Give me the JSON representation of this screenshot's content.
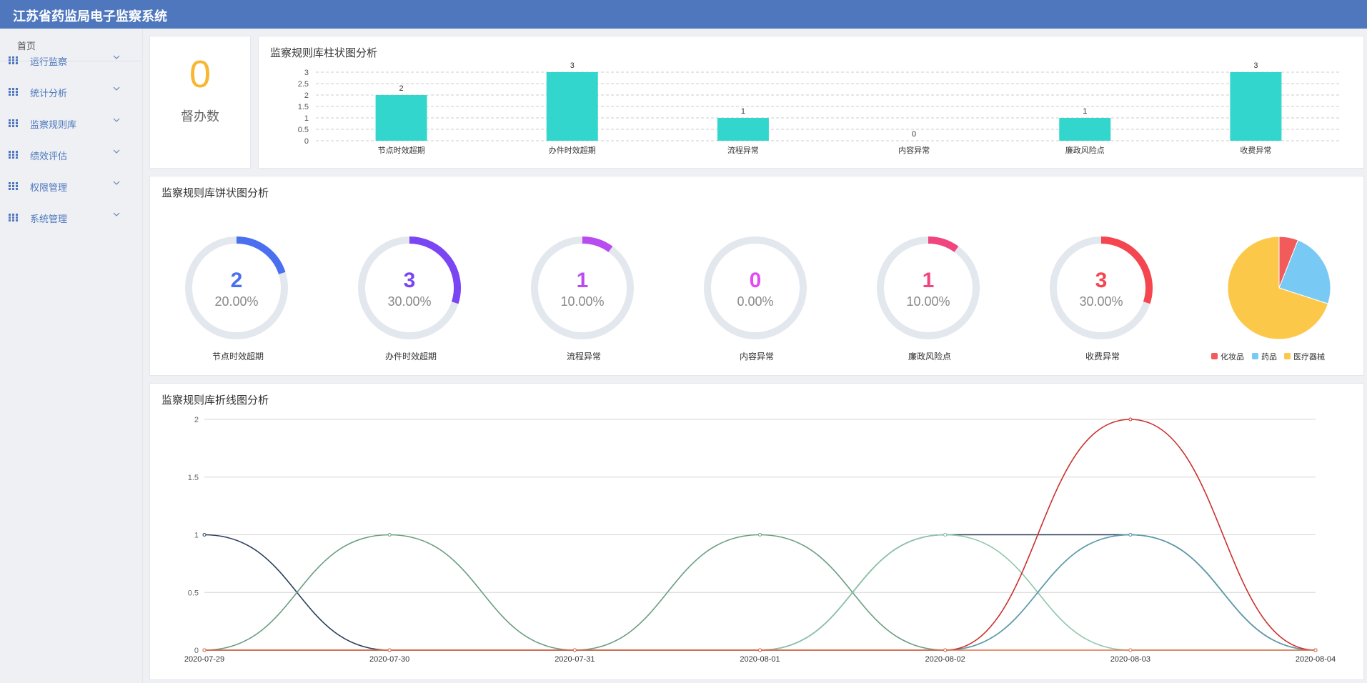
{
  "app": {
    "title": "江苏省药监局电子监察系统"
  },
  "sidebar": {
    "home_label": "首页",
    "items": [
      {
        "label": "运行监察",
        "icon": "grid-icon"
      },
      {
        "label": "统计分析",
        "icon": "grid-icon"
      },
      {
        "label": "监察规则库",
        "icon": "grid-icon"
      },
      {
        "label": "绩效评估",
        "icon": "grid-icon"
      },
      {
        "label": "权限管理",
        "icon": "grid-icon"
      },
      {
        "label": "系统管理",
        "icon": "grid-icon"
      }
    ]
  },
  "supervise": {
    "count": "0",
    "label": "督办数",
    "color": "#f7b733"
  },
  "bar_card": {
    "title": "监察规则库柱状图分析"
  },
  "pie_card": {
    "title": "监察规则库饼状图分析"
  },
  "line_card": {
    "title": "监察规则库折线图分析"
  },
  "colors": {
    "accent": "#4e77bd",
    "bar": "#33d6cc",
    "ring_bg": "#e3e8ee"
  },
  "chart_data": [
    {
      "type": "bar",
      "title": "监察规则库柱状图分析",
      "categories": [
        "节点时效超期",
        "办件时效超期",
        "流程异常",
        "内容异常",
        "廉政风险点",
        "收费异常"
      ],
      "values": [
        2,
        3,
        1,
        0,
        1,
        3
      ],
      "ylim": [
        0,
        3
      ],
      "yticks": [
        "0",
        "0.5",
        "1",
        "1.5",
        "2",
        "2.5",
        "3"
      ],
      "grid": true
    },
    {
      "type": "pie",
      "title": "监察规则库饼状图分析",
      "rings": [
        {
          "label": "节点时效超期",
          "count": "2",
          "percent": "20.00%",
          "fraction": 0.2,
          "color": "#4a6ff0"
        },
        {
          "label": "办件时效超期",
          "count": "3",
          "percent": "30.00%",
          "fraction": 0.3,
          "color": "#7a45f2"
        },
        {
          "label": "流程异常",
          "count": "1",
          "percent": "10.00%",
          "fraction": 0.1,
          "color": "#b84cf0"
        },
        {
          "label": "内容异常",
          "count": "0",
          "percent": "0.00%",
          "fraction": 0.0,
          "color": "#e34cf0"
        },
        {
          "label": "廉政风险点",
          "count": "1",
          "percent": "10.00%",
          "fraction": 0.1,
          "color": "#f0457e"
        },
        {
          "label": "收费异常",
          "count": "3",
          "percent": "30.00%",
          "fraction": 0.3,
          "color": "#f5454f"
        }
      ],
      "pie": {
        "legend": [
          {
            "name": "化妆品",
            "color": "#f25b5b"
          },
          {
            "name": "药品",
            "color": "#79c9f5"
          },
          {
            "name": "医疗器械",
            "color": "#fbc84a"
          }
        ],
        "values": [
          0.06,
          0.24,
          0.7
        ]
      }
    },
    {
      "type": "line",
      "title": "监察规则库折线图分析",
      "x": [
        "2020-07-29",
        "2020-07-30",
        "2020-07-31",
        "2020-08-01",
        "2020-08-02",
        "2020-08-03",
        "2020-08-04"
      ],
      "ylim": [
        0,
        2
      ],
      "yticks": [
        "0",
        "0.5",
        "1",
        "1.5",
        "2"
      ],
      "grid": true,
      "series": [
        {
          "values": [
            1,
            0,
            0,
            0,
            1,
            1,
            0
          ],
          "color": "#2b3f5c"
        },
        {
          "values": [
            0,
            1,
            0,
            1,
            0,
            1,
            0
          ],
          "color": "#6a9e80"
        },
        {
          "values": [
            0,
            0,
            0,
            0,
            1,
            0,
            0
          ],
          "color": "#8ec7aa"
        },
        {
          "values": [
            0,
            0,
            0,
            0,
            0,
            1,
            0
          ],
          "color": "#5b9bb0"
        },
        {
          "values": [
            0,
            0,
            0,
            0,
            0,
            2,
            0
          ],
          "color": "#c9302c"
        },
        {
          "values": [
            0,
            0,
            0,
            0,
            0,
            0,
            0
          ],
          "color": "#e0704a"
        }
      ]
    }
  ]
}
